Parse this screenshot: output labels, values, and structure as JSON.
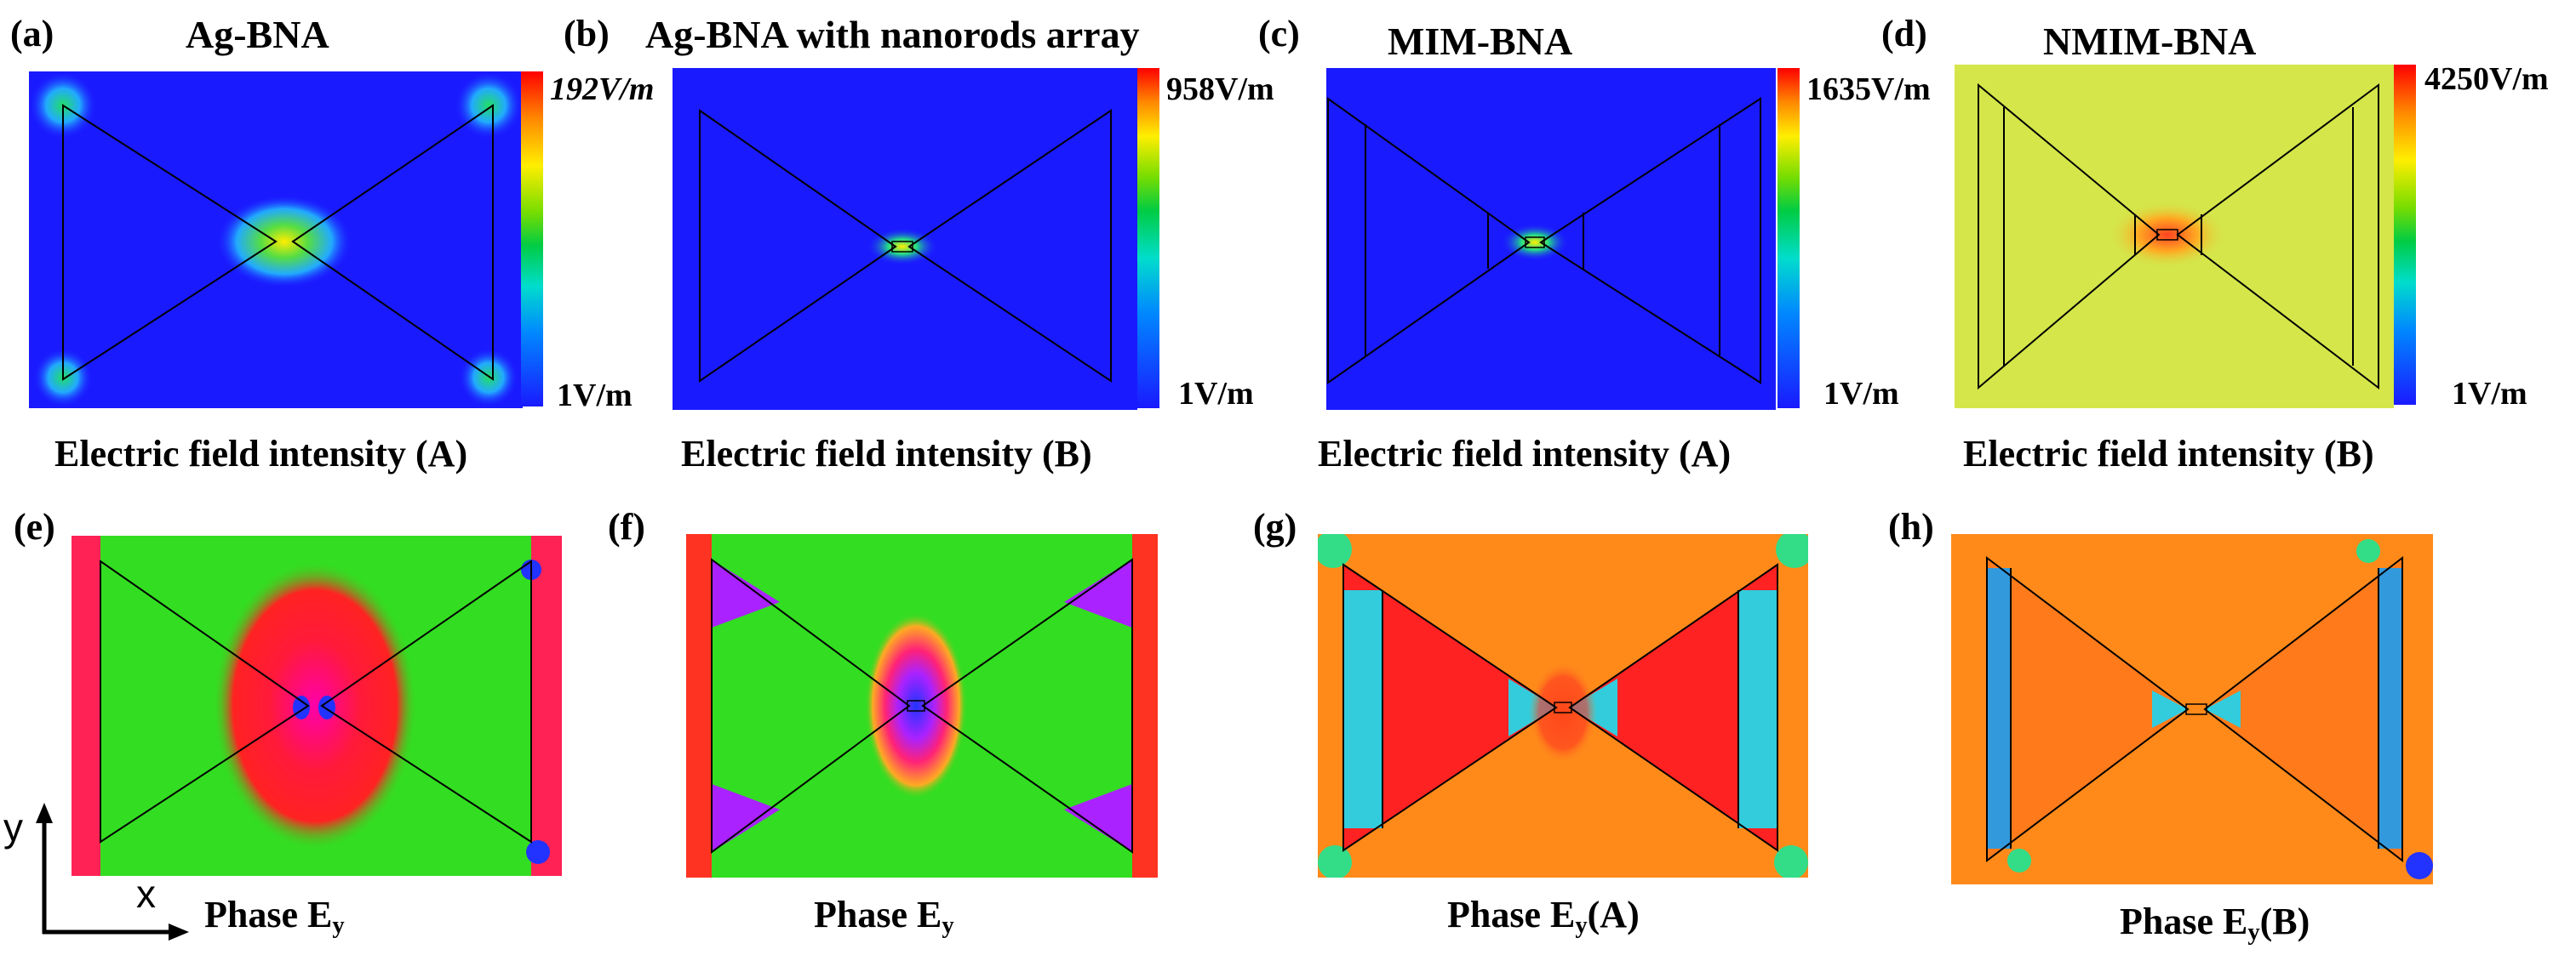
{
  "panels": {
    "a": {
      "label": "(a)",
      "title": "Ag-BNA",
      "max": "192V/m",
      "min": "1V/m",
      "caption": "Electric field intensity (A)"
    },
    "b": {
      "label": "(b)",
      "title": "Ag-BNA with nanorods array",
      "max": "958V/m",
      "min": "1V/m",
      "caption": "Electric field intensity (B)"
    },
    "c": {
      "label": "(c)",
      "title": "MIM-BNA",
      "max": "1635V/m",
      "min": "1V/m",
      "caption": "Electric field intensity (A)"
    },
    "d": {
      "label": "(d)",
      "title": "NMIM-BNA",
      "max": "4250V/m",
      "min": "1V/m",
      "caption": "Electric field intensity (B)"
    },
    "e": {
      "label": "(e)",
      "caption_main": "Phase E",
      "caption_sub": "y",
      "caption_tail": ""
    },
    "f": {
      "label": "(f)",
      "caption_main": "Phase E",
      "caption_sub": "y",
      "caption_tail": ""
    },
    "g": {
      "label": "(g)",
      "caption_main": "Phase E",
      "caption_sub": "y",
      "caption_tail": "(A)"
    },
    "h": {
      "label": "(h)",
      "caption_main": "Phase E",
      "caption_sub": "y",
      "caption_tail": "(B)"
    }
  },
  "axes": {
    "x_label": "x",
    "y_label": "y"
  },
  "colors": {
    "field_blue": "#1a1aff",
    "field_yellow": "#d4e64a",
    "phase_green": "#33dd22",
    "phase_red": "#ff2222",
    "phase_orange": "#ff8a1a",
    "phase_cyan": "#33ccdd"
  }
}
